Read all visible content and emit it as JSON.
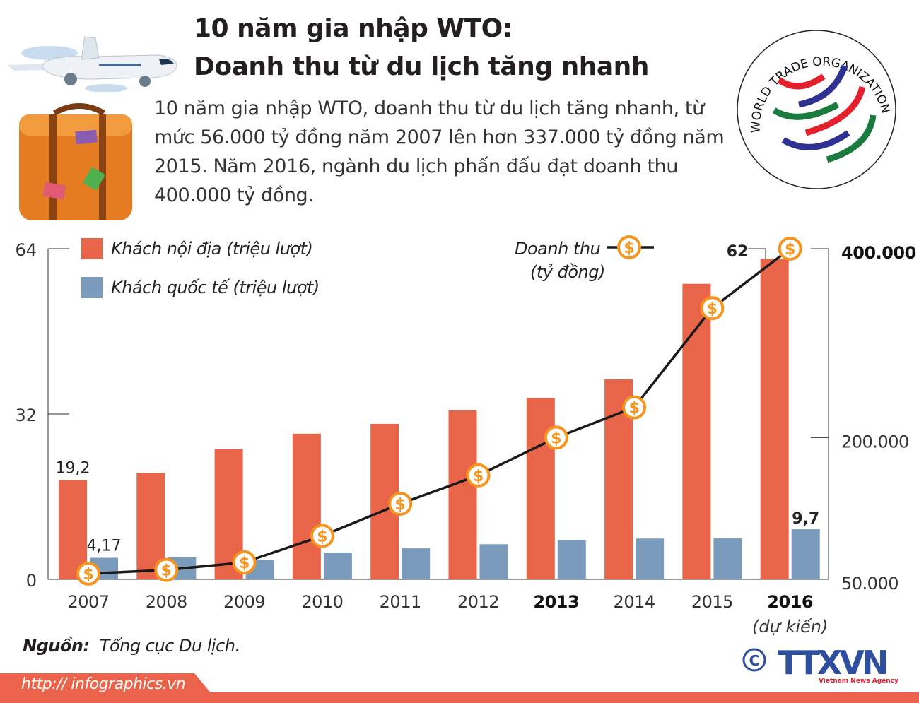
{
  "header": {
    "title_line1": "10 năm gia nhập WTO:",
    "title_line2": "Doanh thu từ du lịch tăng nhanh",
    "description": "10 năm gia nhập WTO, doanh thu từ du lịch tăng nhanh, từ mức 56.000 tỷ đồng năm 2007 lên hơn 337.000 tỷ đồng năm 2015. Năm 2016, ngành du lịch phấn đấu đạt doanh thu 400.000 tỷ đồng."
  },
  "logo_wto": {
    "text": "WORLD TRADE ORGANIZATION"
  },
  "logo_ttxvn": {
    "text": "TTXVN",
    "subtext": "Vietnam News Agency",
    "copyright": "©"
  },
  "footer": {
    "source_label": "Nguồn:",
    "source_value": "Tổng cục Du lịch.",
    "url": "http:// infographics.vn"
  },
  "chart_data": {
    "type": "bar",
    "categories": [
      "2007",
      "2008",
      "2009",
      "2010",
      "2011",
      "2012",
      "2013",
      "2014",
      "2015",
      "2016"
    ],
    "bold_categories": [
      "2013",
      "2016"
    ],
    "category_note": {
      "2016": "(dự kiến)"
    },
    "series": [
      {
        "name": "Khách nội địa (triệu lượt)",
        "axis": "left",
        "type": "bar",
        "color": "#e8654a",
        "values": [
          19.2,
          20.6,
          25.2,
          28.2,
          30.1,
          32.7,
          35.1,
          38.7,
          57.2,
          62
        ]
      },
      {
        "name": "Khách quốc tế (triệu lượt)",
        "axis": "left",
        "type": "bar",
        "color": "#7b9bbc",
        "values": [
          4.17,
          4.25,
          3.8,
          5.2,
          6.0,
          6.8,
          7.6,
          7.9,
          8.0,
          9.7
        ]
      },
      {
        "name": "Doanh thu",
        "unit": "(tỷ đồng)",
        "axis": "right",
        "type": "line",
        "color": "#1a1a1a",
        "marker": "dollar-coin",
        "marker_color": "#f7941d",
        "values": [
          56000,
          60000,
          68000,
          96000,
          130000,
          160000,
          200000,
          232000,
          337000,
          400000
        ]
      }
    ],
    "data_labels": [
      {
        "series": 0,
        "index": 0,
        "text": "19,2"
      },
      {
        "series": 1,
        "index": 0,
        "text": "4,17"
      },
      {
        "series": 0,
        "index": 9,
        "text": "62"
      },
      {
        "series": 1,
        "index": 9,
        "text": "9,7"
      }
    ],
    "left_axis": {
      "ticks": [
        0,
        32,
        64
      ],
      "tick_labels": [
        "0",
        "32",
        "64"
      ],
      "ylim": [
        0,
        64
      ]
    },
    "right_axis": {
      "ticks": [
        50000,
        200000,
        400000
      ],
      "tick_labels": [
        "50.000",
        "200.000",
        "400.000"
      ],
      "bold_labels": [
        "400.000"
      ],
      "ylim": [
        50000,
        400000
      ]
    },
    "legend_placement": "top-left"
  }
}
